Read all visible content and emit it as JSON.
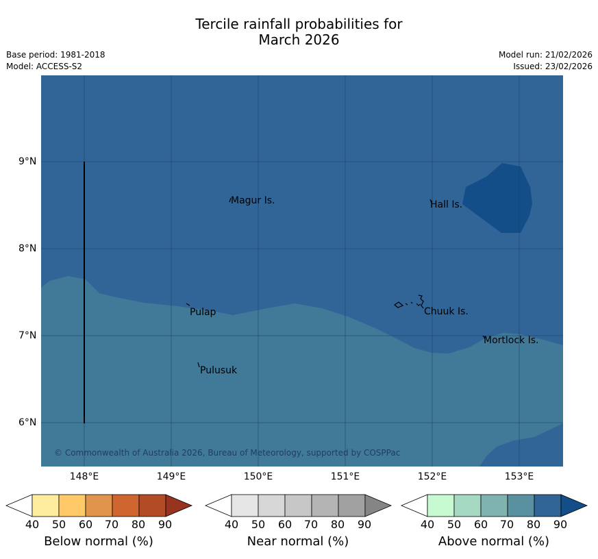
{
  "header": {
    "title_line1": "Tercile rainfall probabilities for",
    "title_line2": "March 2026",
    "base_period": "Base period: 1981-2018",
    "model": "Model: ACCESS-S2",
    "model_run": "Model run: 21/02/2026",
    "issued": "Issued: 23/02/2026"
  },
  "map": {
    "lat_labels": [
      "9°N",
      "8°N",
      "7°N",
      "6°N"
    ],
    "lon_labels": [
      "148°E",
      "149°E",
      "150°E",
      "151°E",
      "152°E",
      "153°E"
    ],
    "places": [
      "Magur Is.",
      "Hall Is.",
      "Pulap",
      "Chuuk Is.",
      "Mortlock Is.",
      "Pulusuk"
    ],
    "copyright": "© Commonwealth of Australia 2026, Bureau of Meteorology, supported by COSPPac",
    "colors": {
      "above_60_70": "#417a98",
      "above_70_80": "#316597",
      "above_80_90": "#134e89",
      "grid": "#1e3e62"
    }
  },
  "colorbars": {
    "below": {
      "label": "Below normal (%)",
      "ticks": [
        "40",
        "50",
        "60",
        "70",
        "80",
        "90"
      ],
      "colors": [
        "#ffffff",
        "#ffed9f",
        "#fec966",
        "#e1944b",
        "#d0662f",
        "#b44b27",
        "#97331e"
      ]
    },
    "near": {
      "label": "Near normal (%)",
      "ticks": [
        "40",
        "50",
        "60",
        "70",
        "80",
        "90"
      ],
      "colors": [
        "#ffffff",
        "#e6e6e6",
        "#d7d7d7",
        "#c7c7c7",
        "#b4b4b4",
        "#a1a1a1",
        "#858585"
      ]
    },
    "above": {
      "label": "Above normal (%)",
      "ticks": [
        "40",
        "50",
        "60",
        "70",
        "80",
        "90"
      ],
      "colors": [
        "#ffffff",
        "#c7fad0",
        "#a6d9c1",
        "#7fb3b0",
        "#5a91a1",
        "#316597",
        "#134e89"
      ]
    }
  }
}
